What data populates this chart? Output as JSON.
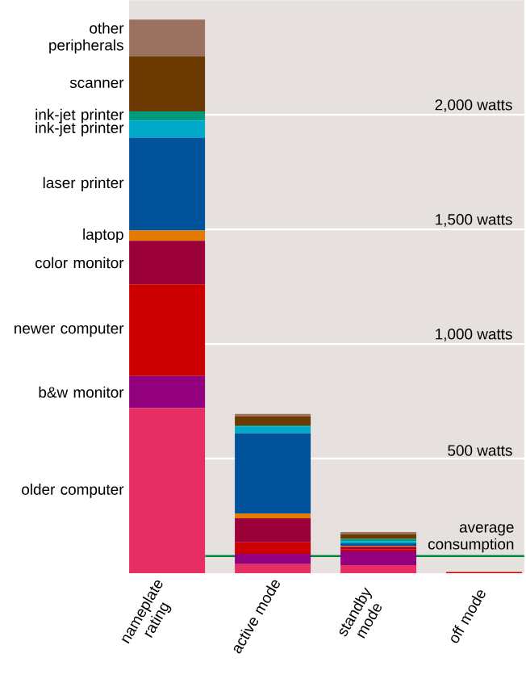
{
  "chart_data": {
    "type": "bar",
    "stacked": true,
    "categories": [
      "nameplate rating",
      "active mode",
      "standby mode",
      "off mode"
    ],
    "series": [
      {
        "name": "older computer",
        "color": "#e62e64",
        "values": [
          720,
          40,
          35,
          null
        ]
      },
      {
        "name": "b&w monitor",
        "color": "#93007e",
        "values": [
          140,
          45,
          60,
          null
        ]
      },
      {
        "name": "newer computer",
        "color": "#cc0000",
        "values": [
          400,
          50,
          10,
          5
        ]
      },
      {
        "name": "color monitor",
        "color": "#9b0038",
        "values": [
          190,
          105,
          10,
          null
        ]
      },
      {
        "name": "laptop",
        "color": "#e47a00",
        "values": [
          45,
          20,
          5,
          null
        ]
      },
      {
        "name": "laser printer",
        "color": "#00529b",
        "values": [
          405,
          350,
          10,
          null
        ]
      },
      {
        "name": "ink-jet printer",
        "color": "#00a9c9",
        "values": [
          75,
          30,
          10,
          null
        ]
      },
      {
        "name": "ink-jet printer",
        "color": "#009b7d",
        "values": [
          40,
          5,
          10,
          null
        ]
      },
      {
        "name": "scanner",
        "color": "#6c3900",
        "values": [
          240,
          40,
          20,
          null
        ]
      },
      {
        "name": "other peripherals",
        "color": "#9b7260",
        "values": [
          160,
          10,
          10,
          null
        ]
      }
    ],
    "ylim": [
      0,
      2500
    ],
    "yticks": [
      {
        "value": 500,
        "label": "500 watts"
      },
      {
        "value": 1000,
        "label": "1,000 watts"
      },
      {
        "value": 1500,
        "label": "1,500 watts"
      },
      {
        "value": 2000,
        "label": "2,000 watts"
      }
    ],
    "grid": "y",
    "ref_lines": [
      {
        "axis": "y",
        "value": 75,
        "label": "average consumption",
        "color": "#00893c"
      }
    ]
  }
}
